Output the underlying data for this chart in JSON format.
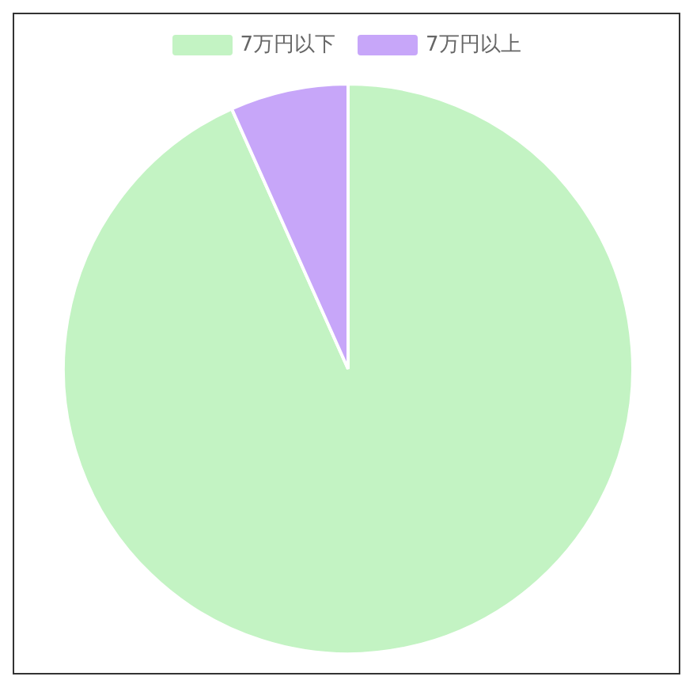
{
  "chart_data": {
    "type": "pie",
    "categories": [
      "7万円以下",
      "7万円以上"
    ],
    "values": [
      93.3,
      6.7
    ],
    "colors": [
      "#c3f3c3",
      "#c7a6f9"
    ],
    "legend": "top"
  }
}
